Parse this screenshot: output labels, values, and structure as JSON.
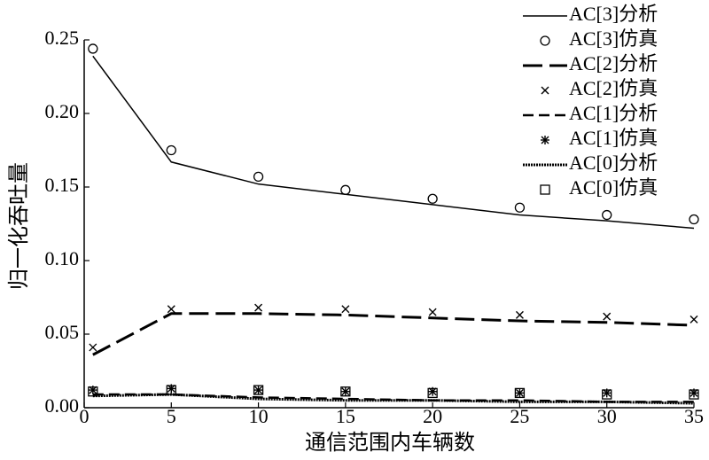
{
  "chart_data": {
    "type": "line",
    "xlabel": "通信范围内车辆数",
    "ylabel": "归一化吞吐量",
    "x": [
      0.5,
      5,
      10,
      15,
      20,
      25,
      30,
      35
    ],
    "xlim": [
      0,
      35
    ],
    "xticks": [
      0,
      5,
      10,
      15,
      20,
      25,
      30,
      35
    ],
    "ylim": [
      0,
      0.25
    ],
    "yticks": [
      {
        "value": 0,
        "label": "0.00"
      },
      {
        "value": 0.05,
        "label": "0.05"
      },
      {
        "value": 0.1,
        "label": "0.10"
      },
      {
        "value": 0.15,
        "label": "0.15"
      },
      {
        "value": 0.2,
        "label": "0.20"
      },
      {
        "value": 0.25,
        "label": "0.25"
      }
    ],
    "legend": "upper right",
    "series": [
      {
        "name": "AC[3]分析",
        "color": "#000000",
        "line_style": "solid",
        "values": [
          0.239,
          0.167,
          0.152,
          0.145,
          0.138,
          0.131,
          0.127,
          0.122
        ]
      },
      {
        "name": "AC[3]仿真",
        "color": "#000000",
        "marker": "circle",
        "values": [
          0.244,
          0.175,
          0.157,
          0.148,
          0.142,
          0.136,
          0.131,
          0.128
        ]
      },
      {
        "name": "AC[2]分析",
        "color": "#000000",
        "line_style": "long-dash",
        "values": [
          0.036,
          0.064,
          0.064,
          0.063,
          0.061,
          0.059,
          0.058,
          0.056
        ]
      },
      {
        "name": "AC[2]仿真",
        "color": "#000000",
        "marker": "x",
        "values": [
          0.041,
          0.067,
          0.068,
          0.067,
          0.065,
          0.063,
          0.062,
          0.06
        ]
      },
      {
        "name": "AC[1]分析",
        "color": "#000000",
        "line_style": "dash",
        "values": [
          0.009,
          0.009,
          0.007,
          0.006,
          0.005,
          0.005,
          0.004,
          0.004
        ]
      },
      {
        "name": "AC[1]仿真",
        "color": "#000000",
        "marker": "asterisk",
        "values": [
          0.012,
          0.013,
          0.012,
          0.011,
          0.011,
          0.01,
          0.01,
          0.01
        ]
      },
      {
        "name": "AC[0]分析",
        "color": "#000000",
        "line_style": "dotted",
        "values": [
          0.008,
          0.009,
          0.006,
          0.005,
          0.005,
          0.004,
          0.004,
          0.003
        ]
      },
      {
        "name": "AC[0]仿真",
        "color": "#000000",
        "marker": "square",
        "values": [
          0.011,
          0.012,
          0.012,
          0.011,
          0.01,
          0.01,
          0.009,
          0.009
        ]
      }
    ]
  }
}
